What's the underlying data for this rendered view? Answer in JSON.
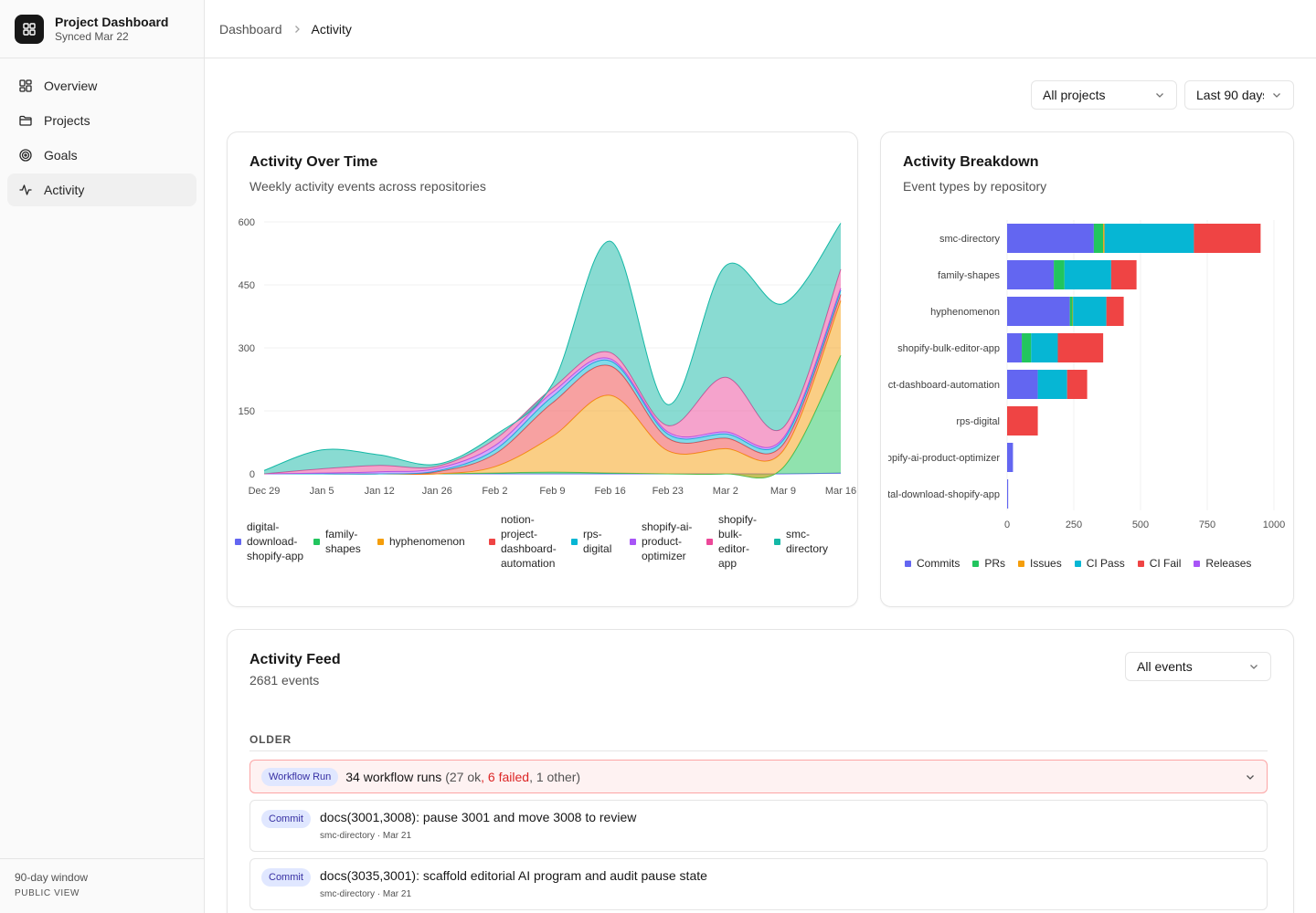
{
  "brand": {
    "title": "Project Dashboard",
    "subtitle": "Synced Mar 22"
  },
  "nav": [
    {
      "label": "Overview",
      "icon": "grid-icon"
    },
    {
      "label": "Projects",
      "icon": "folder-icon"
    },
    {
      "label": "Goals",
      "icon": "target-icon"
    },
    {
      "label": "Activity",
      "icon": "activity-icon",
      "active": true
    }
  ],
  "sidebar_footer": {
    "window": "90-day window",
    "view": "PUBLIC VIEW"
  },
  "breadcrumb": {
    "parent": "Dashboard",
    "current": "Activity"
  },
  "filters": {
    "project": "All projects",
    "range": "Last 90 days"
  },
  "activity_over_time": {
    "title": "Activity Over Time",
    "subtitle": "Weekly activity events across repositories"
  },
  "activity_breakdown": {
    "title": "Activity Breakdown",
    "subtitle": "Event types by repository"
  },
  "feed": {
    "title": "Activity Feed",
    "count": "2681 events",
    "filter": "All events",
    "section": "OLDER",
    "workflow": {
      "badge": "Workflow Run",
      "main": "34 workflow runs",
      "open": " (27 ok",
      "failed": ", 6 failed",
      "close": ", 1 other)"
    },
    "commits": [
      {
        "badge": "Commit",
        "message": "docs(3001,3008): pause 3001 and move 3008 to review",
        "meta": "smc-directory · Mar 21"
      },
      {
        "badge": "Commit",
        "message": "docs(3035,3001): scaffold editorial AI program and audit pause state",
        "meta": "smc-directory · Mar 21"
      }
    ]
  },
  "colors": {
    "indigo": "#6366f1",
    "green": "#22c55e",
    "amber": "#f59e0b",
    "red": "#ef4444",
    "cyan": "#06b6d4",
    "purple": "#a855f7",
    "pink": "#ec4899",
    "teal": "#14b8a6"
  },
  "chart_data": [
    {
      "type": "area",
      "stacked": true,
      "title": "Activity Over Time",
      "x": [
        "Dec 29",
        "Jan 5",
        "Jan 12",
        "Jan 26",
        "Feb 2",
        "Feb 9",
        "Feb 16",
        "Feb 23",
        "Mar 2",
        "Mar 9",
        "Mar 16"
      ],
      "x_ticks": [
        "Dec 29",
        "Jan 5",
        "Jan 12",
        "Jan 26",
        "Feb 2",
        "Feb 9",
        "Feb 16",
        "Feb 23",
        "Mar 2",
        "Mar 9",
        "Mar 16"
      ],
      "ylim": [
        0,
        600
      ],
      "y_ticks": [
        0,
        150,
        300,
        450,
        600
      ],
      "series": [
        {
          "name": "digital-download-shopify-app",
          "color": "#6366f1",
          "values": [
            0,
            0,
            0,
            0,
            0,
            0,
            0,
            0,
            0,
            0,
            2
          ]
        },
        {
          "name": "family-shapes",
          "color": "#22c55e",
          "values": [
            0,
            0,
            0,
            0,
            2,
            4,
            2,
            0,
            0,
            15,
            280
          ]
        },
        {
          "name": "hyphenomenon",
          "color": "#f59e0b",
          "values": [
            0,
            0,
            0,
            0,
            15,
            85,
            185,
            55,
            60,
            40,
            130
          ]
        },
        {
          "name": "notion-project-dashboard-automation",
          "color": "#ef4444",
          "values": [
            0,
            0,
            0,
            5,
            30,
            80,
            70,
            30,
            25,
            15,
            15
          ]
        },
        {
          "name": "rps-digital",
          "color": "#06b6d4",
          "values": [
            0,
            0,
            0,
            2,
            10,
            15,
            12,
            10,
            10,
            10,
            10
          ]
        },
        {
          "name": "shopify-ai-product-optimizer",
          "color": "#a855f7",
          "values": [
            0,
            2,
            5,
            6,
            10,
            10,
            5,
            5,
            5,
            5,
            5
          ]
        },
        {
          "name": "shopify-bulk-editor-app",
          "color": "#ec4899",
          "values": [
            0,
            10,
            15,
            5,
            15,
            10,
            15,
            15,
            130,
            25,
            45
          ]
        },
        {
          "name": "smc-directory",
          "color": "#14b8a6",
          "values": [
            8,
            45,
            25,
            5,
            10,
            10,
            265,
            50,
            265,
            295,
            110
          ]
        }
      ]
    },
    {
      "type": "bar",
      "orientation": "horizontal",
      "stacked": true,
      "title": "Activity Breakdown",
      "categories": [
        "smc-directory",
        "family-shapes",
        "hyphenomenon",
        "shopify-bulk-editor-app",
        "notion-project-dashboard-automation",
        "rps-digital",
        "shopify-ai-product-optimizer",
        "digital-download-shopify-app"
      ],
      "xlim": [
        0,
        1000
      ],
      "x_ticks": [
        0,
        250,
        500,
        750,
        1000
      ],
      "series": [
        {
          "name": "Commits",
          "color": "#6366f1",
          "values": [
            325,
            175,
            235,
            55,
            115,
            0,
            22,
            4
          ]
        },
        {
          "name": "PRs",
          "color": "#22c55e",
          "values": [
            35,
            40,
            10,
            35,
            0,
            0,
            0,
            0
          ]
        },
        {
          "name": "Issues",
          "color": "#f59e0b",
          "values": [
            5,
            0,
            2,
            0,
            0,
            0,
            0,
            0
          ]
        },
        {
          "name": "CI Pass",
          "color": "#06b6d4",
          "values": [
            335,
            175,
            125,
            100,
            110,
            0,
            0,
            0
          ]
        },
        {
          "name": "CI Fail",
          "color": "#ef4444",
          "values": [
            250,
            95,
            65,
            170,
            75,
            115,
            0,
            0
          ]
        },
        {
          "name": "Releases",
          "color": "#a855f7",
          "values": [
            0,
            0,
            0,
            0,
            0,
            0,
            0,
            0
          ]
        }
      ]
    }
  ]
}
